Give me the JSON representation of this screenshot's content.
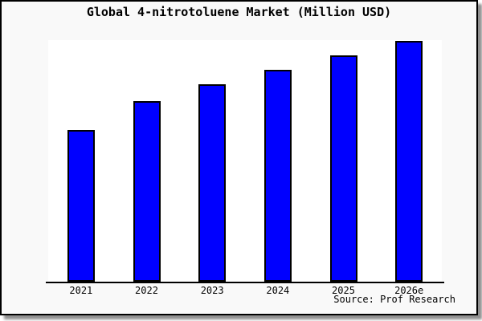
{
  "frame": {
    "background": "#f9f9f9",
    "border_color": "#000000",
    "shadow_color": "#8f8f8f"
  },
  "chart_data": {
    "type": "bar",
    "title": "Global 4-nitrotoluene Market (Million USD)",
    "categories": [
      "2021",
      "2022",
      "2023",
      "2024",
      "2025",
      "2026e"
    ],
    "values": [
      63,
      75,
      82,
      88,
      94,
      100
    ],
    "values_note": "relative bar heights as % of tallest bar (2026e); chart shows no value axis, gridlines or data labels",
    "xlabel": "",
    "ylabel": "",
    "ylim": [
      0,
      100
    ],
    "y_axis_shown": false,
    "gridlines": false,
    "legend": "none",
    "bar_color": "#0000ff",
    "bar_border_color": "#000000",
    "plot_background": "#ffffff",
    "source": "Source: Prof Research"
  }
}
